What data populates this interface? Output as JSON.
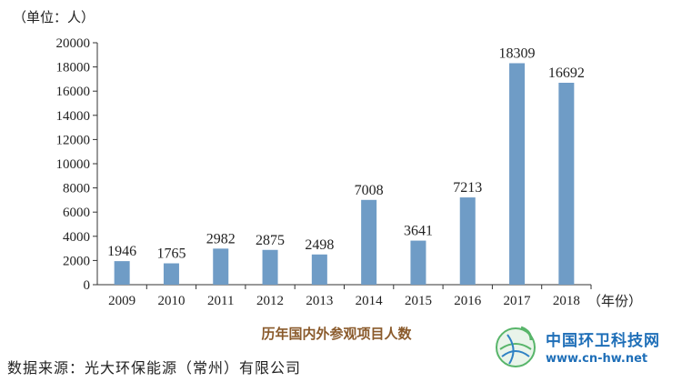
{
  "chart_data": {
    "type": "bar",
    "title": "历年国内外参观项目人数",
    "unit_label": "（单位：人）",
    "x_unit_label": "（年份）",
    "categories": [
      "2009",
      "2010",
      "2011",
      "2012",
      "2013",
      "2014",
      "2015",
      "2016",
      "2017",
      "2018"
    ],
    "values": [
      1946,
      1765,
      2982,
      2875,
      2498,
      7008,
      3641,
      7213,
      18309,
      16692
    ],
    "ylim": [
      0,
      20000
    ],
    "yticks": [
      0,
      2000,
      4000,
      6000,
      8000,
      10000,
      12000,
      14000,
      16000,
      18000,
      20000
    ],
    "bar_color": "#6f9cc6",
    "grid": false,
    "legend": "none"
  },
  "source": "数据来源：光大环保能源（常州）有限公司",
  "watermark": {
    "name": "中国环卫科技网",
    "url": "www.cn-hw.net"
  }
}
